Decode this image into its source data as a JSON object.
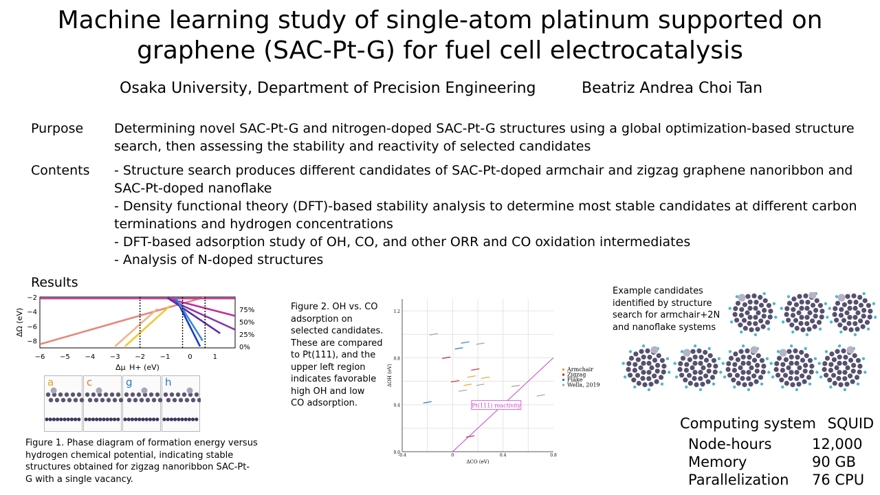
{
  "title": {
    "line1": "Machine learning study of single-atom platinum supported on",
    "line2": "graphene (SAC-Pt-G) for fuel cell electrocatalysis"
  },
  "affiliation": "Osaka University, Department of Precision Engineering",
  "author": "Beatriz Andrea Choi Tan",
  "purpose": {
    "label": "Purpose",
    "lines": [
      "Determining novel SAC-Pt-G and nitrogen-doped SAC-Pt-G structures using a global optimization-based structure",
      "search, then assessing the stability and reactivity of selected candidates"
    ]
  },
  "contents": {
    "label": "Contents",
    "lines": [
      "- Structure search produces different candidates of SAC-Pt-doped armchair and zigzag graphene nanoribbon and",
      "SAC-Pt-doped nanoflake",
      "- Density functional theory (DFT)-based stability analysis to determine most stable candidates at different carbon",
      "terminations and hydrogen concentrations",
      "- DFT-based adsorption study of OH, CO, and other ORR and CO oxidation intermediates",
      "- Analysis of N-doped structures"
    ]
  },
  "results_label": "Results",
  "figure1": {
    "caption": [
      "Figure 1. Phase diagram of formation energy versus",
      "hydrogen chemical potential, indicating stable",
      "structures obtained for zigzag nanoribbon SAC-Pt-",
      "G with a single vacancy."
    ],
    "panel_labels": [
      "a",
      "c",
      "g",
      "h"
    ],
    "panel_label_colors": [
      "#e8a020",
      "#e07828",
      "#2878c8",
      "#2878c8"
    ]
  },
  "figure2": {
    "caption": [
      "Figure 2. OH vs. CO",
      "adsorption on",
      "selected candidates.",
      "These are compared",
      "to Pt(111), and the",
      "upper left region",
      "indicates favorable",
      "high OH and low",
      "CO adsorption."
    ]
  },
  "candidates_caption": [
    "Example candidates",
    "identified by structure",
    "search for armchair+2N",
    "and nanoflake systems"
  ],
  "computing": {
    "title": "Computing system",
    "system": "SQUID",
    "rows": [
      {
        "label": "Node-hours",
        "value": "12,000"
      },
      {
        "label": "Memory",
        "value": "90 GB"
      },
      {
        "label": "Parallelization",
        "value": "76 CPU"
      }
    ]
  },
  "chart_data": [
    {
      "type": "line",
      "title": "",
      "xlabel": "Δμ_H+ (eV)",
      "ylabel": "ΔΩ (eV)",
      "x_ticks": [
        "−6",
        "−5",
        "−4",
        "−3",
        "−2",
        "−1",
        "0",
        "1"
      ],
      "y_ticks": [
        "−2",
        "−4",
        "−6",
        "−8"
      ],
      "y2_ticks": [
        "75%",
        "50%",
        "25%",
        "0%"
      ],
      "xlim": [
        -6,
        1.8
      ],
      "ylim": [
        -9,
        -2
      ],
      "phase_boundaries_x": [
        -2.0,
        -0.3,
        0.6
      ],
      "series": [
        {
          "color": "#e8867a",
          "x": [
            -6,
            0.6
          ],
          "y": [
            -8.5,
            -2.0
          ]
        },
        {
          "color": "#f2b483",
          "x": [
            -3.0,
            -1.3
          ],
          "y": [
            -8.8,
            -3.6
          ]
        },
        {
          "color": "#f0c830",
          "x": [
            -2.6,
            -0.8
          ],
          "y": [
            -8.8,
            -3.2
          ]
        },
        {
          "color": "#cc3a9a",
          "x": [
            -6,
            1.8
          ],
          "y": [
            -2.2,
            -2.2
          ]
        },
        {
          "color": "#c0309a",
          "x": [
            -0.9,
            1.8
          ],
          "y": [
            -2.2,
            -4.6
          ]
        },
        {
          "color": "#8a3aa8",
          "x": [
            -0.8,
            1.8
          ],
          "y": [
            -2.4,
            -6.5
          ]
        },
        {
          "color": "#5a2ab0",
          "x": [
            -0.9,
            1.2
          ],
          "y": [
            -2.1,
            -7.0
          ]
        },
        {
          "color": "#1a3ac8",
          "x": [
            -0.6,
            0.4
          ],
          "y": [
            -2.0,
            -8.8
          ]
        },
        {
          "color": "#3a8ad8",
          "x": [
            -0.6,
            0.5
          ],
          "y": [
            -2.0,
            -8.0
          ]
        }
      ]
    },
    {
      "type": "scatter",
      "title": "",
      "xlabel": "ΔCO (eV)",
      "ylabel": "ΔOH (eV)",
      "xlim": [
        -0.4,
        0.8
      ],
      "ylim": [
        0.0,
        1.3
      ],
      "x_ticks": [
        "-0.4",
        "0",
        "0.4",
        "0.8"
      ],
      "y_ticks": [
        "0.0",
        "0.4",
        "0.8",
        "1.2"
      ],
      "legend_position": "right",
      "legend": [
        {
          "name": "Armchair",
          "color": "#e8a020"
        },
        {
          "name": "Zigzag",
          "color": "#d02020"
        },
        {
          "name": "Flake",
          "color": "#2878c8"
        },
        {
          "name": "Wella, 2019",
          "color": "#a0a0a0"
        }
      ],
      "reference_line": {
        "label": "Pt(111) reactivity",
        "color": "#cc40cc",
        "x": [
          0.0,
          0.8
        ],
        "y": [
          0.0,
          0.8
        ]
      },
      "points": [
        {
          "x": -0.15,
          "y": 1.0,
          "color": "#a0a0a0"
        },
        {
          "x": 0.1,
          "y": 0.93,
          "color": "#2878c8"
        },
        {
          "x": 0.22,
          "y": 0.92,
          "color": "#a0a0a0"
        },
        {
          "x": 0.05,
          "y": 0.88,
          "color": "#2878c8"
        },
        {
          "x": -0.05,
          "y": 0.8,
          "color": "#d02020"
        },
        {
          "x": 0.18,
          "y": 0.7,
          "color": "#d02020"
        },
        {
          "x": 0.15,
          "y": 0.64,
          "color": "#e8a020"
        },
        {
          "x": 0.26,
          "y": 0.63,
          "color": "#e8a020"
        },
        {
          "x": 0.02,
          "y": 0.6,
          "color": "#d02020"
        },
        {
          "x": 0.12,
          "y": 0.57,
          "color": "#e8a020"
        },
        {
          "x": 0.22,
          "y": 0.57,
          "color": "#a0a0a0"
        },
        {
          "x": 0.5,
          "y": 0.56,
          "color": "#a0a0a0"
        },
        {
          "x": 0.08,
          "y": 0.52,
          "color": "#a0a0a0"
        },
        {
          "x": 0.7,
          "y": 0.48,
          "color": "#a0a0a0"
        },
        {
          "x": -0.2,
          "y": 0.42,
          "color": "#2878c8"
        },
        {
          "x": 0.14,
          "y": 0.13,
          "color": "#d02020"
        }
      ]
    }
  ]
}
